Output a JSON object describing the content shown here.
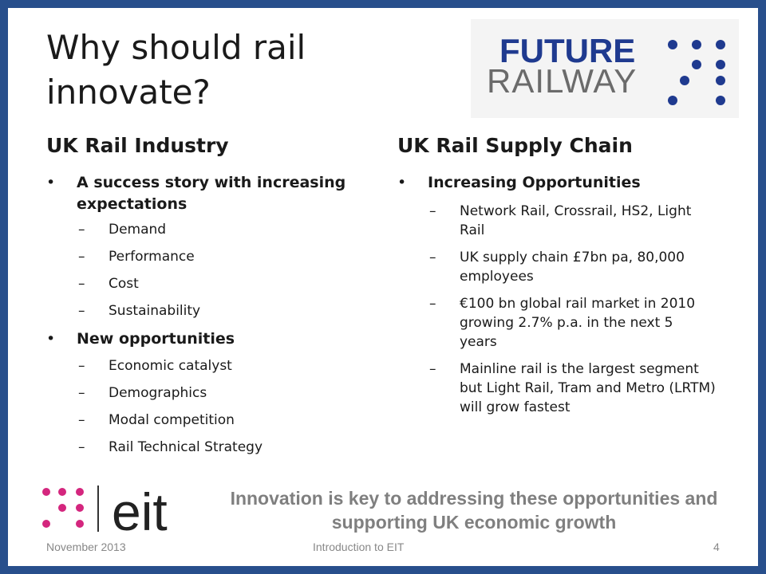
{
  "title": "Why should rail innovate?",
  "logo_future_railway": {
    "line1": "FUTURE",
    "line2": "RAILWAY"
  },
  "left": {
    "heading": "UK Rail Industry",
    "bullets": [
      {
        "text": "A success story with increasing expectations",
        "sub": [
          "Demand",
          "Performance",
          "Cost",
          "Sustainability"
        ]
      },
      {
        "text": "New opportunities",
        "sub": [
          "Economic catalyst",
          "Demographics",
          "Modal competition",
          "Rail Technical Strategy"
        ]
      }
    ]
  },
  "right": {
    "heading": "UK Rail Supply Chain",
    "bullets": [
      {
        "text": "Increasing Opportunities",
        "sub": [
          "Network Rail, Crossrail, HS2, Light Rail",
          "UK supply chain £7bn pa, 80,000 employees",
          "€100 bn global rail market in 2010 growing 2.7% p.a. in the next 5 years",
          "Mainline rail is the largest segment but Light Rail, Tram and Metro (LRTM) will grow fastest"
        ]
      }
    ]
  },
  "tagline": "Innovation is key to addressing these opportunities and supporting UK economic growth",
  "footer": {
    "date": "November 2013",
    "center": "Introduction to EIT",
    "page": "4"
  },
  "logo_eit": {
    "text": "eit"
  },
  "colors": {
    "frame": "#284f8c",
    "eit_magenta": "#d4267e",
    "future_blue": "#1f3a8f",
    "tagline_gray": "#7f7f7f"
  }
}
